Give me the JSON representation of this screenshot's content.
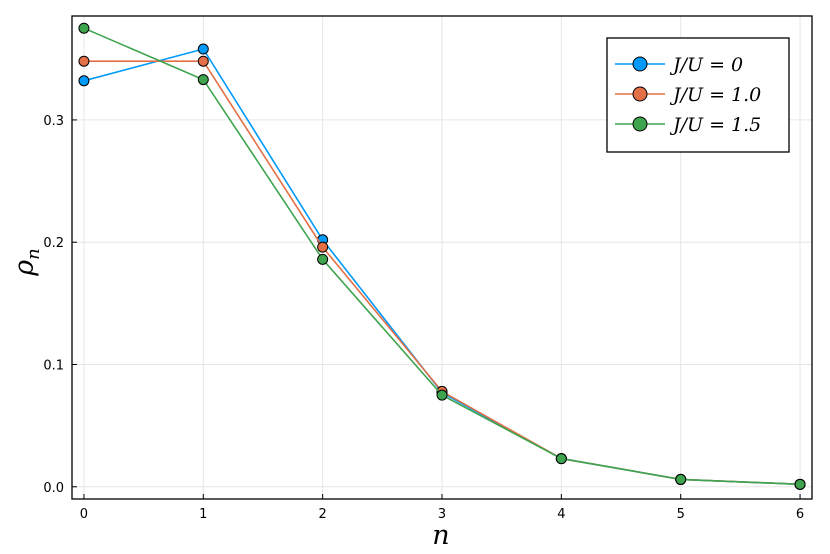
{
  "chart_data": {
    "type": "line",
    "xlabel": "n",
    "ylabel_main": "ρ",
    "ylabel_sub": "n",
    "xlim": [
      -0.1,
      6.1
    ],
    "ylim": [
      -0.01,
      0.385
    ],
    "x": [
      0,
      1,
      2,
      3,
      4,
      5,
      6
    ],
    "xticks": [
      0,
      1,
      2,
      3,
      4,
      5,
      6
    ],
    "xtick_labels": [
      "0",
      "1",
      "2",
      "3",
      "4",
      "5",
      "6"
    ],
    "yticks": [
      0.0,
      0.1,
      0.2,
      0.3
    ],
    "ytick_labels": [
      "0.0",
      "0.1",
      "0.2",
      "0.3"
    ],
    "grid": true,
    "legend_position": "top-right",
    "series": [
      {
        "name": "J/U = 0",
        "color": "#009AFA",
        "values": [
          0.332,
          0.358,
          0.202,
          0.077,
          0.023,
          0.006,
          0.002
        ]
      },
      {
        "name": "J/U = 1.0",
        "color": "#E36F47",
        "values": [
          0.348,
          0.348,
          0.196,
          0.078,
          0.023,
          0.006,
          0.002
        ]
      },
      {
        "name": "J/U = 1.5",
        "color": "#3EA44E",
        "values": [
          0.375,
          0.333,
          0.186,
          0.075,
          0.023,
          0.006,
          0.002
        ]
      }
    ]
  }
}
